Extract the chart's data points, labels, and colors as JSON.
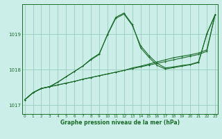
{
  "background_color": "#cceee8",
  "grid_color": "#99ccbb",
  "line_color": "#1a6b2a",
  "xlabel": "Graphe pression niveau de la mer (hPa)",
  "ylim": [
    1016.75,
    1019.85
  ],
  "xlim": [
    -0.3,
    23.3
  ],
  "yticks": [
    1017,
    1018,
    1019
  ],
  "xticks": [
    0,
    1,
    2,
    3,
    4,
    5,
    6,
    7,
    8,
    9,
    10,
    11,
    12,
    13,
    14,
    15,
    16,
    17,
    18,
    19,
    20,
    21,
    22,
    23
  ],
  "series_straight1": [
    1017.15,
    1017.35,
    1017.47,
    1017.52,
    1017.57,
    1017.62,
    1017.67,
    1017.73,
    1017.78,
    1017.83,
    1017.88,
    1017.93,
    1017.98,
    1018.03,
    1018.08,
    1018.13,
    1018.18,
    1018.23,
    1018.28,
    1018.33,
    1018.38,
    1018.43,
    1018.52,
    1019.55
  ],
  "series_straight2": [
    1017.15,
    1017.35,
    1017.47,
    1017.52,
    1017.57,
    1017.62,
    1017.67,
    1017.73,
    1017.78,
    1017.83,
    1017.88,
    1017.93,
    1017.98,
    1018.05,
    1018.1,
    1018.16,
    1018.22,
    1018.28,
    1018.34,
    1018.38,
    1018.42,
    1018.47,
    1018.56,
    1019.55
  ],
  "series_zigzag1": [
    1017.15,
    1017.35,
    1017.47,
    1017.52,
    1017.65,
    1017.8,
    1017.95,
    1018.1,
    1018.3,
    1018.45,
    1018.98,
    1019.45,
    1019.57,
    1019.25,
    1018.68,
    1018.4,
    1018.18,
    1018.05,
    1018.08,
    1018.12,
    1018.15,
    1018.22,
    1019.0,
    1019.55
  ],
  "series_zigzag2": [
    1017.15,
    1017.35,
    1017.47,
    1017.52,
    1017.65,
    1017.8,
    1017.95,
    1018.1,
    1018.28,
    1018.43,
    1019.0,
    1019.48,
    1019.6,
    1019.28,
    1018.62,
    1018.35,
    1018.12,
    1018.02,
    1018.06,
    1018.1,
    1018.14,
    1018.2,
    1019.02,
    1019.55
  ]
}
